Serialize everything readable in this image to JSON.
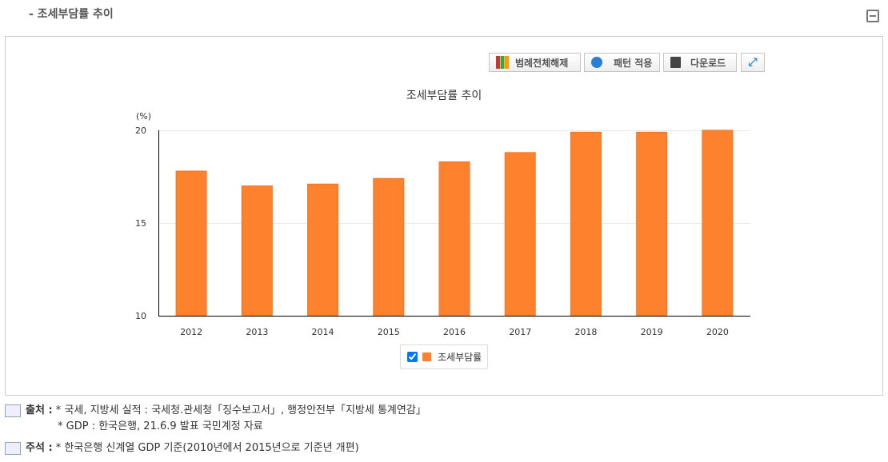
{
  "section_title": "- 조세부담률 추이",
  "toolbar": {
    "legend_off": "범례전체해제",
    "pattern": "패턴 적용",
    "download": "다운로드"
  },
  "chart_data": {
    "type": "bar",
    "title": "조세부담률 추이",
    "ylabel": "(%)",
    "categories": [
      "2012",
      "2013",
      "2014",
      "2015",
      "2016",
      "2017",
      "2018",
      "2019",
      "2020"
    ],
    "series": [
      {
        "name": "조세부담률",
        "values": [
          17.8,
          17.0,
          17.1,
          17.4,
          18.3,
          18.8,
          19.9,
          19.9,
          20.0
        ],
        "color": "#fe812e"
      }
    ],
    "ylim": [
      10,
      20
    ],
    "yticks": [
      "10",
      "15",
      "20"
    ],
    "grid": true,
    "legend": "bottom"
  },
  "notes": {
    "source_label": "출처 :",
    "source_lines": [
      "* 국세, 지방세 실적 : 국세청.관세청「징수보고서」, 행정안전부「지방세 통계연감」",
      "* GDP : 한국은행, 21.6.9 발표 국민계정 자료"
    ],
    "note_label": "주석 :",
    "note_lines": [
      "* 한국은행 신계열 GDP 기준(2010년에서 2015년으로 기준년 개편)"
    ]
  }
}
